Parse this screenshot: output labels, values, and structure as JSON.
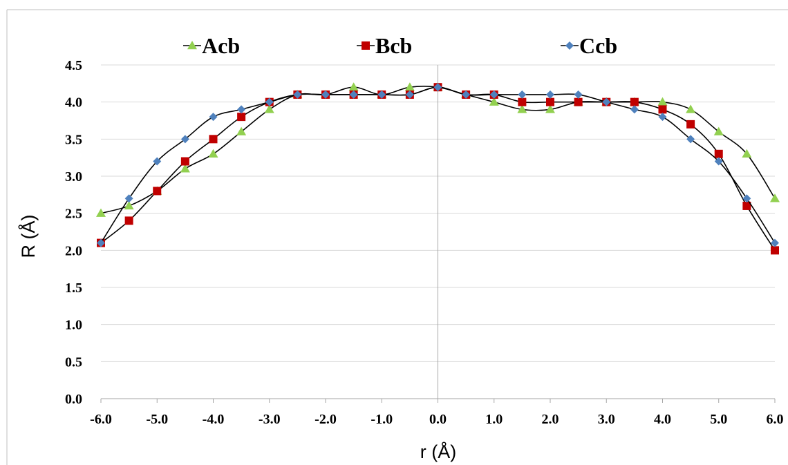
{
  "chart_data": {
    "type": "line",
    "title": "",
    "xlabel": "r (Å)",
    "ylabel": "R (Å)",
    "xlim": [
      -6.0,
      6.0
    ],
    "ylim": [
      0.0,
      4.5
    ],
    "x_ticks": [
      "-6.0",
      "-5.0",
      "-4.0",
      "-3.0",
      "-2.0",
      "-1.0",
      "0.0",
      "1.0",
      "2.0",
      "3.0",
      "4.0",
      "5.0",
      "6.0"
    ],
    "y_ticks": [
      "0.0",
      "0.5",
      "1.0",
      "1.5",
      "2.0",
      "2.5",
      "3.0",
      "3.5",
      "4.0",
      "4.5"
    ],
    "grid": "horizontal",
    "legend_position": "top",
    "x": [
      -6.0,
      -5.5,
      -5.0,
      -4.5,
      -4.0,
      -3.5,
      -3.0,
      -2.5,
      -2.0,
      -1.5,
      -1.0,
      -0.5,
      0.0,
      0.5,
      1.0,
      1.5,
      2.0,
      2.5,
      3.0,
      3.5,
      4.0,
      4.5,
      5.0,
      5.5,
      6.0
    ],
    "series": [
      {
        "name": "Acb",
        "marker": "triangle",
        "color": "#92d050",
        "values": [
          2.5,
          2.6,
          2.8,
          3.1,
          3.3,
          3.6,
          3.9,
          4.1,
          4.1,
          4.2,
          4.1,
          4.2,
          4.2,
          4.1,
          4.0,
          3.9,
          3.9,
          4.0,
          4.0,
          4.0,
          4.0,
          3.9,
          3.6,
          3.3,
          2.7
        ]
      },
      {
        "name": "Bcb",
        "marker": "square",
        "color": "#c00000",
        "values": [
          2.1,
          2.4,
          2.8,
          3.2,
          3.5,
          3.8,
          4.0,
          4.1,
          4.1,
          4.1,
          4.1,
          4.1,
          4.2,
          4.1,
          4.1,
          4.0,
          4.0,
          4.0,
          4.0,
          4.0,
          3.9,
          3.7,
          3.3,
          2.6,
          2.0
        ]
      },
      {
        "name": "Ccb",
        "marker": "diamond",
        "color": "#4f81bd",
        "values": [
          2.1,
          2.7,
          3.2,
          3.5,
          3.8,
          3.9,
          4.0,
          4.1,
          4.1,
          4.1,
          4.1,
          4.1,
          4.2,
          4.1,
          4.1,
          4.1,
          4.1,
          4.1,
          4.0,
          3.9,
          3.8,
          3.5,
          3.2,
          2.7,
          2.1
        ]
      }
    ],
    "colors": {
      "line": "#000000",
      "grid": "#d9d9d9",
      "axis": "#a6a6a6"
    }
  }
}
